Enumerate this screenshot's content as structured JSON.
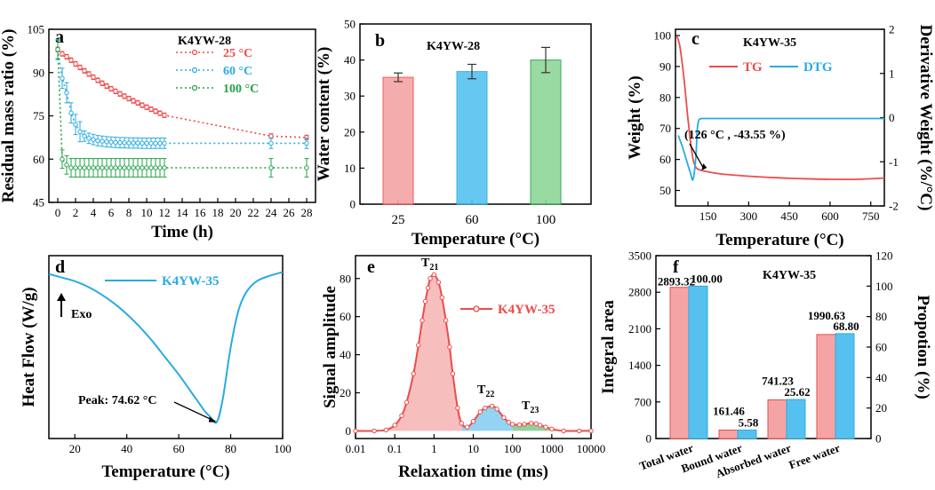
{
  "colors": {
    "red": "#ee4b4b",
    "blue": "#29abe2",
    "green": "#22a24a",
    "bar_red": "#f4a4a4",
    "bar_blue": "#56c1f0",
    "bar_green": "#8fd69a"
  },
  "chart_data": [
    {
      "id": "a",
      "type": "line",
      "panel_label": "a",
      "title": "K4YW-28",
      "xlabel": "Time (h)",
      "ylabel": "Residual mass ratio (%)",
      "xlim": [
        -1,
        29
      ],
      "ylim": [
        45,
        105
      ],
      "xticks": [
        "0",
        "2",
        "4",
        "6",
        "8",
        "10",
        "12",
        "14",
        "16",
        "18",
        "20",
        "22",
        "24",
        "26",
        "28"
      ],
      "yticks": [
        "45",
        "60",
        "75",
        "90",
        "105"
      ],
      "series": [
        {
          "name": "25 °C",
          "color": "#ee4b4b",
          "x": [
            0,
            0.5,
            1,
            1.5,
            2,
            2.5,
            3,
            3.5,
            4,
            4.5,
            5,
            5.5,
            6,
            6.5,
            7,
            7.5,
            8,
            8.5,
            9,
            9.5,
            10,
            10.5,
            11,
            11.5,
            12,
            24,
            28
          ],
          "y": [
            98,
            96.5,
            95.5,
            94.3,
            93,
            91.8,
            90.6,
            89.5,
            88.4,
            87.3,
            86.3,
            85.3,
            84.4,
            83.5,
            82.6,
            81.8,
            81,
            80.2,
            79.5,
            78.7,
            78,
            77.3,
            76.6,
            75.9,
            75.2,
            68,
            67.5
          ]
        },
        {
          "name": "60 °C",
          "color": "#29abe2",
          "x": [
            0,
            0.5,
            1,
            1.5,
            2,
            2.5,
            3,
            3.5,
            4,
            4.5,
            5,
            5.5,
            6,
            6.5,
            7,
            7.5,
            8,
            8.5,
            9,
            9.5,
            10,
            10.5,
            11,
            11.5,
            12,
            24,
            28
          ],
          "y": [
            98,
            88,
            83,
            76,
            72,
            69.5,
            68,
            67.2,
            66.8,
            66.4,
            66.2,
            66,
            65.9,
            65.8,
            65.7,
            65.7,
            65.6,
            65.6,
            65.6,
            65.5,
            65.5,
            65.5,
            65.5,
            65.5,
            65.5,
            65.5,
            65.5
          ]
        },
        {
          "name": "100 °C",
          "color": "#22a24a",
          "x": [
            0,
            0.5,
            1,
            1.5,
            2,
            2.5,
            3,
            3.5,
            4,
            4.5,
            5,
            5.5,
            6,
            6.5,
            7,
            7.5,
            8,
            8.5,
            9,
            9.5,
            10,
            10.5,
            11,
            11.5,
            12,
            24,
            28
          ],
          "y": [
            98,
            60,
            58,
            57,
            57,
            57,
            57,
            57,
            57,
            57,
            57,
            57,
            57,
            57,
            57,
            57,
            57,
            57,
            57,
            57,
            57,
            57,
            57,
            57,
            57,
            57,
            57
          ]
        }
      ]
    },
    {
      "id": "b",
      "type": "bar",
      "panel_label": "b",
      "title": "K4YW-28",
      "xlabel": "Temperature (°C)",
      "ylabel": "Water content (%)",
      "ylim": [
        0,
        50
      ],
      "yticks": [
        "0",
        "10",
        "20",
        "30",
        "40",
        "50"
      ],
      "categories": [
        "25",
        "60",
        "100"
      ],
      "values": [
        35.2,
        36.8,
        40.0
      ],
      "errors": [
        1.2,
        2.0,
        3.5
      ]
    },
    {
      "id": "c",
      "type": "line",
      "panel_label": "c",
      "title": "K4YW-35",
      "xlabel": "Temperature (°C)",
      "ylabel": "Weight (%)",
      "y2label": "Derivative Weight (%/°C)",
      "xlim": [
        30,
        800
      ],
      "ylim": [
        45,
        102
      ],
      "y2lim": [
        -2,
        2
      ],
      "xticks": [
        "150",
        "300",
        "450",
        "600",
        "750"
      ],
      "yticks": [
        "50",
        "60",
        "70",
        "80",
        "90",
        "100"
      ],
      "y2ticks": [
        "-2",
        "-1",
        "0",
        "1",
        "2"
      ],
      "legend": [
        "TG",
        "DTG"
      ],
      "annotation": "(126 °C , -43.55 %)",
      "series": [
        {
          "name": "TG",
          "color": "#ee4b4b",
          "x": [
            35,
            45,
            55,
            65,
            75,
            85,
            95,
            105,
            115,
            126,
            150,
            200,
            300,
            400,
            500,
            600,
            700,
            800
          ],
          "y": [
            100,
            97,
            91,
            83,
            74,
            66,
            60,
            57.5,
            56.8,
            56.45,
            56,
            55.3,
            54.6,
            54.1,
            53.8,
            53.6,
            53.6,
            54
          ]
        },
        {
          "name": "DTG",
          "color": "#29abe2",
          "x": [
            40,
            55,
            70,
            85,
            95,
            105,
            110,
            115,
            120,
            130,
            150,
            200,
            400,
            600,
            800
          ],
          "y": [
            -0.4,
            -0.65,
            -0.95,
            -1.25,
            -1.4,
            -0.9,
            -0.3,
            -0.08,
            -0.03,
            -0.02,
            -0.02,
            -0.02,
            -0.02,
            -0.02,
            -0.02
          ]
        }
      ]
    },
    {
      "id": "d",
      "type": "line",
      "panel_label": "d",
      "title": "K4YW-35",
      "xlabel": "Temperature (°C)",
      "ylabel": "Heat Flow (W/g)",
      "xlim": [
        10,
        100
      ],
      "ylim": [
        0,
        100
      ],
      "xticks": [
        "20",
        "40",
        "60",
        "80",
        "100"
      ],
      "exo_label": "Exo",
      "annotation": "Peak: 74.62 °C",
      "series": [
        {
          "name": "K4YW-35",
          "color": "#29abe2",
          "x": [
            10,
            15,
            20,
            25,
            30,
            35,
            40,
            45,
            50,
            55,
            60,
            65,
            68,
            70,
            72,
            74.62,
            77,
            80,
            83,
            86,
            90,
            95,
            100
          ],
          "y": [
            90,
            88,
            86,
            83,
            79,
            74,
            68,
            61,
            53,
            44,
            35,
            25,
            19,
            15,
            12,
            9,
            22,
            50,
            70,
            80,
            86,
            89,
            91
          ]
        }
      ]
    },
    {
      "id": "e",
      "type": "area",
      "panel_label": "e",
      "xlabel": "Relaxation time (ms)",
      "ylabel": "Signal amplitude",
      "xscale": "log",
      "xlim": [
        0.01,
        10000
      ],
      "ylim": [
        -4,
        92
      ],
      "xticks": [
        "0.01",
        "0.1",
        "1",
        "10",
        "100",
        "1000",
        "10000"
      ],
      "yticks": [
        "0",
        "20",
        "40",
        "60",
        "80"
      ],
      "legend": "K4YW-35",
      "peak_labels": {
        "T21": "T",
        "T21_sub": "21",
        "T22": "T",
        "T22_sub": "22",
        "T23": "T",
        "T23_sub": "23"
      },
      "series": [
        {
          "name": "K4YW-35",
          "color": "#ee4b4b",
          "x": [
            0.01,
            0.03,
            0.06,
            0.1,
            0.15,
            0.2,
            0.3,
            0.4,
            0.5,
            0.6,
            0.7,
            0.8,
            1,
            1.3,
            1.6,
            2,
            2.5,
            3,
            4,
            5,
            7,
            10,
            15,
            20,
            30,
            40,
            60,
            80,
            100,
            150,
            200,
            300,
            400,
            500,
            700,
            1000,
            2000,
            5000,
            10000
          ],
          "y": [
            0,
            0,
            0.5,
            3,
            8,
            15,
            30,
            45,
            58,
            68,
            75,
            80,
            82,
            78,
            70,
            58,
            44,
            30,
            12,
            4,
            2,
            5,
            10,
            12,
            13,
            11.5,
            7,
            4.5,
            3.5,
            3.2,
            3.5,
            4,
            3.8,
            3,
            2,
            1,
            0,
            0,
            0
          ]
        }
      ]
    },
    {
      "id": "f",
      "type": "bar",
      "panel_label": "f",
      "title": "K4YW-35",
      "ylabel": "Integral area",
      "y2label": "Propotion (%)",
      "ylim": [
        0,
        3500
      ],
      "y2lim": [
        0,
        120
      ],
      "yticks": [
        "0",
        "700",
        "1400",
        "2100",
        "2800",
        "3500"
      ],
      "y2ticks": [
        "0",
        "20",
        "40",
        "60",
        "80",
        "100",
        "120"
      ],
      "categories": [
        "Total water",
        "Bound water",
        "Absorbed water",
        "Free water"
      ],
      "series": [
        {
          "name": "Integral area",
          "color": "#f4a4a4",
          "values": [
            2893.32,
            161.46,
            741.23,
            1990.63
          ],
          "labels": [
            "2893.32",
            "161.46",
            "741.23",
            "1990.63"
          ]
        },
        {
          "name": "Propotion",
          "color": "#56c1f0",
          "values": [
            100.0,
            5.58,
            25.62,
            68.8
          ],
          "labels": [
            "100.00",
            "5.58",
            "25.62",
            "68.80"
          ]
        }
      ]
    }
  ]
}
